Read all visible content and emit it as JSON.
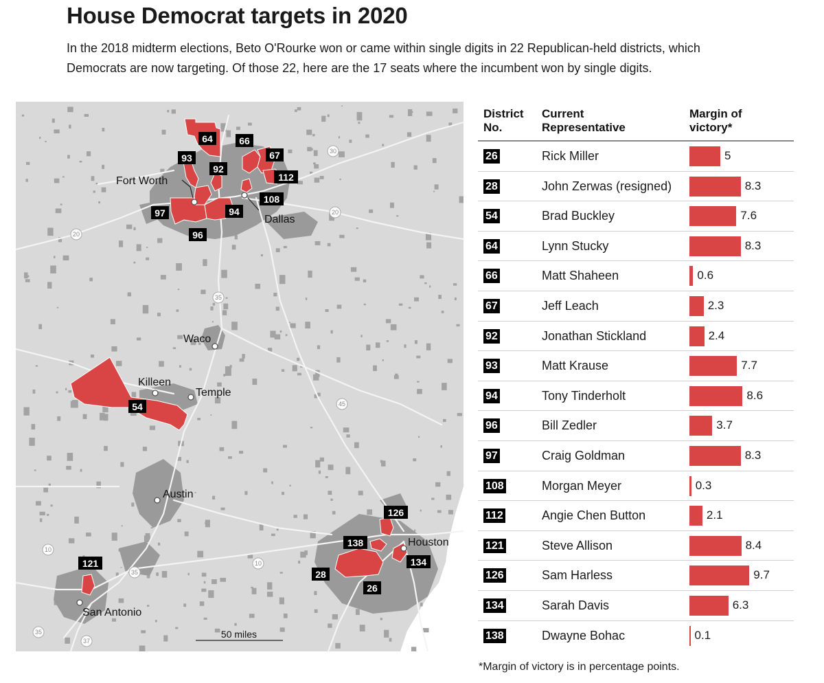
{
  "header": {
    "title": "House Democrat targets in 2020",
    "subtitle": "In the 2018 midterm elections, Beto O'Rourke won or came within single digits in 22 Republican-held districts, which Democrats are now targeting. Of those 22, here are the 17 seats where the incumbent won by single digits."
  },
  "map": {
    "cities": {
      "fort_worth": "Fort Worth",
      "dallas": "Dallas",
      "waco": "Waco",
      "killeen": "Killeen",
      "temple": "Temple",
      "austin": "Austin",
      "houston": "Houston",
      "san_antonio": "San Antonio"
    },
    "highways": {
      "i30": "30",
      "i20_west": "20",
      "i20_east": "20",
      "i35_north": "35",
      "i45": "45",
      "i35_south": "35",
      "i10_west": "10",
      "i10_east": "10",
      "i35_far_south": "35",
      "i37": "37"
    },
    "district_labels": {
      "d64": "64",
      "d66": "66",
      "d93": "93",
      "d67": "67",
      "d92": "92",
      "d112": "112",
      "d108": "108",
      "d97": "97",
      "d94": "94",
      "d96": "96",
      "d54": "54",
      "d126": "126",
      "d138": "138",
      "d134": "134",
      "d28": "28",
      "d26": "26",
      "d121": "121"
    },
    "scale_label": "50 miles",
    "colors": {
      "district": "#d94545",
      "background": "#d9d9d9",
      "urban": "#9d9d9d",
      "roads": "#f2f2f2"
    }
  },
  "table": {
    "headers": {
      "district_no": [
        "District",
        "No."
      ],
      "representative": [
        "Current",
        "Representative"
      ],
      "margin": [
        "Margin of",
        "victory*"
      ]
    },
    "max_margin": 10,
    "rows": [
      {
        "district": "26",
        "representative": "Rick Miller",
        "margin": 5
      },
      {
        "district": "28",
        "representative": "John Zerwas (resigned)",
        "margin": 8.3
      },
      {
        "district": "54",
        "representative": "Brad Buckley",
        "margin": 7.6
      },
      {
        "district": "64",
        "representative": "Lynn Stucky",
        "margin": 8.3
      },
      {
        "district": "66",
        "representative": "Matt Shaheen",
        "margin": 0.6
      },
      {
        "district": "67",
        "representative": "Jeff Leach",
        "margin": 2.3
      },
      {
        "district": "92",
        "representative": "Jonathan Stickland",
        "margin": 2.4
      },
      {
        "district": "93",
        "representative": "Matt Krause",
        "margin": 7.7
      },
      {
        "district": "94",
        "representative": "Tony Tinderholt",
        "margin": 8.6
      },
      {
        "district": "96",
        "representative": "Bill Zedler",
        "margin": 3.7
      },
      {
        "district": "97",
        "representative": "Craig Goldman",
        "margin": 8.3
      },
      {
        "district": "108",
        "representative": "Morgan Meyer",
        "margin": 0.3
      },
      {
        "district": "112",
        "representative": "Angie Chen Button",
        "margin": 2.1
      },
      {
        "district": "121",
        "representative": "Steve Allison",
        "margin": 8.4
      },
      {
        "district": "126",
        "representative": "Sam Harless",
        "margin": 9.7
      },
      {
        "district": "134",
        "representative": "Sarah Davis",
        "margin": 6.3
      },
      {
        "district": "138",
        "representative": "Dwayne Bohac",
        "margin": 0.1
      }
    ],
    "bar_color": "#d94545"
  },
  "footnote": "*Margin of victory is in percentage points."
}
